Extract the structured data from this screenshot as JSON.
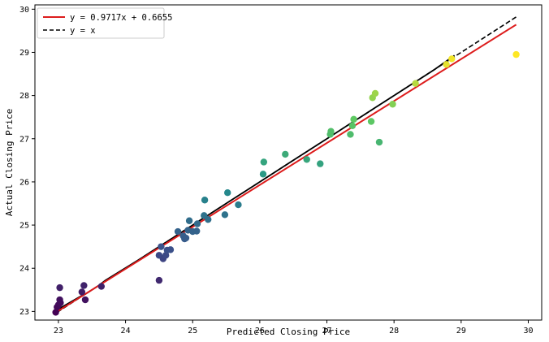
{
  "chart_data": {
    "type": "scatter",
    "xlabel": "Predicted Closing Price",
    "ylabel": "Actual Closing Price",
    "xlim": [
      22.65,
      30.2
    ],
    "ylim": [
      22.8,
      30.1
    ],
    "x_ticks": [
      "23",
      "24",
      "25",
      "26",
      "27",
      "28",
      "29",
      "30"
    ],
    "y_ticks": [
      "23",
      "24",
      "25",
      "26",
      "27",
      "28",
      "29",
      "30"
    ],
    "grid": false,
    "legend_position": "top-left",
    "legend": [
      {
        "label": "y = 0.9717x + 0.6655",
        "color": "#dd1c1c",
        "style": "solid"
      },
      {
        "label": "y = x",
        "color": "#000000",
        "style": "dashed"
      }
    ],
    "fit_line": {
      "slope": 0.9717,
      "intercept": 0.6655,
      "x_range": [
        22.98,
        29.82
      ]
    },
    "identity_line": {
      "x_range": [
        22.98,
        29.82
      ]
    },
    "actual_trace": {
      "x": [
        22.98,
        23.0,
        23.01,
        23.02,
        23.05,
        23.33,
        23.4,
        23.6,
        23.7,
        24.2,
        24.5,
        24.65,
        24.8,
        24.9,
        25.0,
        25.1,
        25.2,
        25.3,
        25.4,
        25.55,
        25.9,
        26.2,
        26.5,
        26.8,
        27.05,
        27.3,
        27.5,
        27.65,
        27.75,
        28.0,
        28.3,
        28.6,
        28.9
      ],
      "y": [
        23.0,
        23.0,
        23.02,
        23.05,
        23.1,
        23.35,
        23.4,
        23.6,
        23.72,
        24.2,
        24.5,
        24.65,
        24.8,
        24.9,
        25.0,
        25.1,
        25.2,
        25.3,
        25.4,
        25.55,
        25.9,
        26.2,
        26.5,
        26.8,
        27.05,
        27.3,
        27.5,
        27.65,
        27.75,
        28.0,
        28.3,
        28.6,
        28.93
      ]
    },
    "points": [
      {
        "x": 22.96,
        "y": 22.98
      },
      {
        "x": 22.98,
        "y": 23.1
      },
      {
        "x": 23.0,
        "y": 23.15
      },
      {
        "x": 23.02,
        "y": 23.27
      },
      {
        "x": 23.03,
        "y": 23.2
      },
      {
        "x": 23.02,
        "y": 23.55
      },
      {
        "x": 23.35,
        "y": 23.45
      },
      {
        "x": 23.38,
        "y": 23.6
      },
      {
        "x": 23.4,
        "y": 23.27
      },
      {
        "x": 23.64,
        "y": 23.58
      },
      {
        "x": 24.5,
        "y": 23.72
      },
      {
        "x": 24.5,
        "y": 24.3
      },
      {
        "x": 24.53,
        "y": 24.5
      },
      {
        "x": 24.56,
        "y": 24.22
      },
      {
        "x": 24.6,
        "y": 24.3
      },
      {
        "x": 24.62,
        "y": 24.42
      },
      {
        "x": 24.67,
        "y": 24.43
      },
      {
        "x": 24.78,
        "y": 24.85
      },
      {
        "x": 24.86,
        "y": 24.75
      },
      {
        "x": 24.88,
        "y": 24.68
      },
      {
        "x": 24.9,
        "y": 24.7
      },
      {
        "x": 24.93,
        "y": 24.88
      },
      {
        "x": 24.95,
        "y": 25.1
      },
      {
        "x": 25.0,
        "y": 24.85
      },
      {
        "x": 25.06,
        "y": 24.86
      },
      {
        "x": 25.07,
        "y": 25.03
      },
      {
        "x": 25.17,
        "y": 25.22
      },
      {
        "x": 25.18,
        "y": 25.58
      },
      {
        "x": 25.23,
        "y": 25.13
      },
      {
        "x": 25.48,
        "y": 25.24
      },
      {
        "x": 25.52,
        "y": 25.75
      },
      {
        "x": 25.68,
        "y": 25.47
      },
      {
        "x": 26.05,
        "y": 26.18
      },
      {
        "x": 26.06,
        "y": 26.46
      },
      {
        "x": 26.38,
        "y": 26.64
      },
      {
        "x": 26.7,
        "y": 26.52
      },
      {
        "x": 26.9,
        "y": 26.42
      },
      {
        "x": 27.05,
        "y": 27.1
      },
      {
        "x": 27.06,
        "y": 27.17
      },
      {
        "x": 27.35,
        "y": 27.1
      },
      {
        "x": 27.38,
        "y": 27.3
      },
      {
        "x": 27.4,
        "y": 27.45
      },
      {
        "x": 27.66,
        "y": 27.4
      },
      {
        "x": 27.68,
        "y": 27.95
      },
      {
        "x": 27.72,
        "y": 28.05
      },
      {
        "x": 27.78,
        "y": 26.92
      },
      {
        "x": 27.98,
        "y": 27.8
      },
      {
        "x": 28.32,
        "y": 28.28
      },
      {
        "x": 28.78,
        "y": 28.72
      },
      {
        "x": 28.86,
        "y": 28.85
      },
      {
        "x": 29.82,
        "y": 28.95
      }
    ],
    "colormap": "viridis"
  }
}
